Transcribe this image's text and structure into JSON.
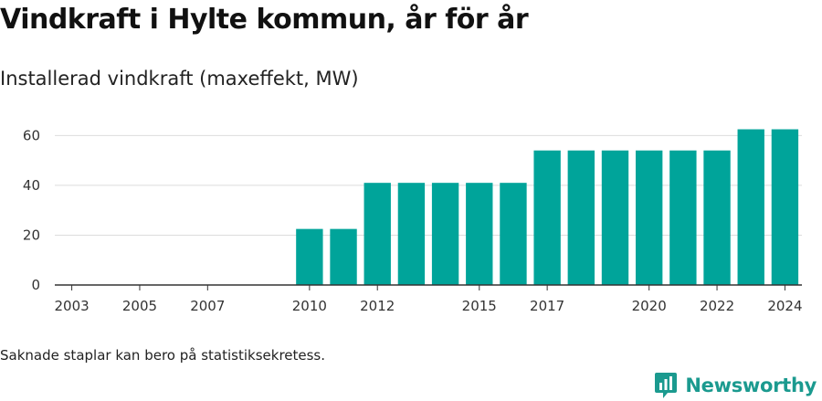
{
  "header": {
    "title": "Vindkraft i Hylte kommun, år för år",
    "subtitle": "Installerad vindkraft (maxeffekt, MW)"
  },
  "footer": {
    "note": "Saknade staplar kan bero på statistiksekretess.",
    "brand": "Newsworthy"
  },
  "colors": {
    "bar": "#00a49a",
    "grid": "#dddddd",
    "brand": "#1b9a8f"
  },
  "icons": {
    "brand_logo": "bar-chart-speech-bubble-icon"
  },
  "chart_data": {
    "type": "bar",
    "title": "Vindkraft i Hylte kommun, år för år",
    "subtitle": "Installerad vindkraft (maxeffekt, MW)",
    "xlabel": "",
    "ylabel": "",
    "ylim": [
      0,
      66
    ],
    "yticks": [
      0,
      20,
      40,
      60
    ],
    "categories": [
      "2003",
      "2004",
      "2005",
      "2006",
      "2007",
      "2008",
      "2009",
      "2010",
      "2011",
      "2012",
      "2013",
      "2014",
      "2015",
      "2016",
      "2017",
      "2018",
      "2019",
      "2020",
      "2021",
      "2022",
      "2023",
      "2024"
    ],
    "xtick_labels": [
      "2003",
      "2005",
      "2007",
      "2010",
      "2012",
      "2015",
      "2017",
      "2020",
      "2022",
      "2024"
    ],
    "values": [
      null,
      null,
      null,
      null,
      null,
      null,
      null,
      22.5,
      22.5,
      41,
      41,
      41,
      41,
      41,
      54,
      54,
      54,
      54,
      54,
      54,
      62.5,
      62.5
    ],
    "grid": true,
    "legend": "none"
  }
}
